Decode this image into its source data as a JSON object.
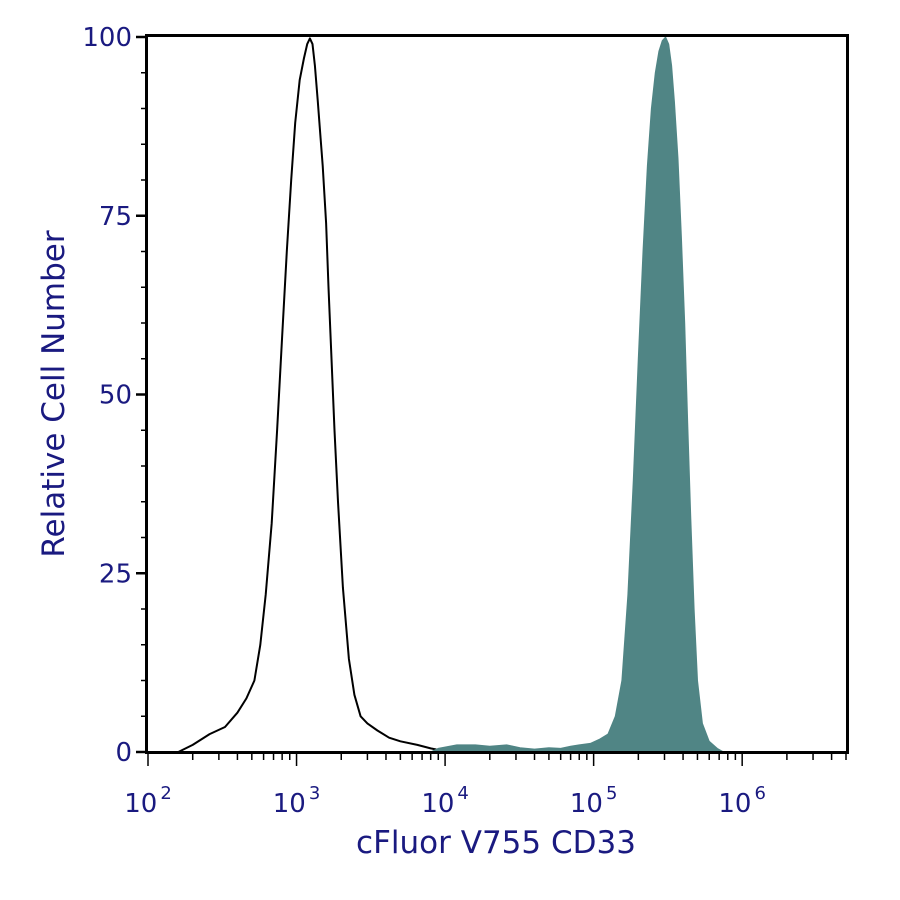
{
  "chart_data": {
    "type": "area",
    "xlabel": "cFluor V755 CD33",
    "ylabel": "Relative Cell Number",
    "x_scale": "log",
    "xlim": [
      100,
      5000000
    ],
    "ylim": [
      0,
      100
    ],
    "x_tick_labels": [
      {
        "value": 100,
        "base": "10",
        "exp": "2"
      },
      {
        "value": 1000,
        "base": "10",
        "exp": "3"
      },
      {
        "value": 10000,
        "base": "10",
        "exp": "4"
      },
      {
        "value": 100000,
        "base": "10",
        "exp": "5"
      },
      {
        "value": 1000000,
        "base": "10",
        "exp": "6"
      }
    ],
    "y_ticks": [
      {
        "value": 0,
        "label": "0"
      },
      {
        "value": 25,
        "label": "25"
      },
      {
        "value": 50,
        "label": "50"
      },
      {
        "value": 75,
        "label": "75"
      },
      {
        "value": 100,
        "label": "100"
      }
    ],
    "grid": false,
    "colors": {
      "text": "#1a1a80",
      "axis": "#000000",
      "control_line": "#000000",
      "stained_fill": "#508585"
    },
    "series": [
      {
        "style": "outline",
        "color": "#000000",
        "points": [
          [
            160,
            0
          ],
          [
            200,
            1
          ],
          [
            260,
            2.5
          ],
          [
            330,
            3.5
          ],
          [
            400,
            5.5
          ],
          [
            460,
            7.5
          ],
          [
            520,
            10
          ],
          [
            570,
            15
          ],
          [
            620,
            22
          ],
          [
            680,
            32
          ],
          [
            740,
            45
          ],
          [
            800,
            58
          ],
          [
            860,
            70
          ],
          [
            920,
            80
          ],
          [
            980,
            88
          ],
          [
            1050,
            94
          ],
          [
            1120,
            97
          ],
          [
            1180,
            99
          ],
          [
            1230,
            99.8
          ],
          [
            1280,
            99
          ],
          [
            1330,
            96
          ],
          [
            1390,
            91
          ],
          [
            1450,
            86
          ],
          [
            1500,
            82
          ],
          [
            1540,
            78
          ],
          [
            1580,
            74
          ],
          [
            1640,
            65
          ],
          [
            1720,
            55
          ],
          [
            1800,
            45
          ],
          [
            1900,
            35
          ],
          [
            2050,
            23
          ],
          [
            2250,
            13
          ],
          [
            2450,
            8
          ],
          [
            2700,
            5
          ],
          [
            3000,
            4
          ],
          [
            3500,
            3
          ],
          [
            4200,
            2
          ],
          [
            5000,
            1.5
          ],
          [
            6500,
            1
          ],
          [
            8000,
            0.5
          ],
          [
            9500,
            0.2
          ],
          [
            10000,
            0
          ]
        ]
      },
      {
        "style": "filled",
        "color": "#508585",
        "points": [
          [
            8000,
            0
          ],
          [
            9000,
            0.5
          ],
          [
            12000,
            1
          ],
          [
            16000,
            1
          ],
          [
            20000,
            0.8
          ],
          [
            26000,
            1
          ],
          [
            32000,
            0.6
          ],
          [
            40000,
            0.4
          ],
          [
            50000,
            0.6
          ],
          [
            60000,
            0.5
          ],
          [
            70000,
            0.8
          ],
          [
            80000,
            1
          ],
          [
            95000,
            1.2
          ],
          [
            110000,
            1.8
          ],
          [
            125000,
            2.5
          ],
          [
            140000,
            5
          ],
          [
            155000,
            10
          ],
          [
            170000,
            22
          ],
          [
            185000,
            38
          ],
          [
            200000,
            55
          ],
          [
            215000,
            70
          ],
          [
            230000,
            82
          ],
          [
            245000,
            90
          ],
          [
            260000,
            95
          ],
          [
            275000,
            98
          ],
          [
            290000,
            99.5
          ],
          [
            305000,
            100
          ],
          [
            320000,
            99
          ],
          [
            335000,
            96
          ],
          [
            350000,
            91
          ],
          [
            370000,
            83
          ],
          [
            390000,
            72
          ],
          [
            410000,
            60
          ],
          [
            430000,
            46
          ],
          [
            450000,
            33
          ],
          [
            475000,
            20
          ],
          [
            500000,
            10
          ],
          [
            540000,
            4
          ],
          [
            600000,
            1.5
          ],
          [
            680000,
            0.5
          ],
          [
            750000,
            0
          ]
        ]
      }
    ]
  }
}
